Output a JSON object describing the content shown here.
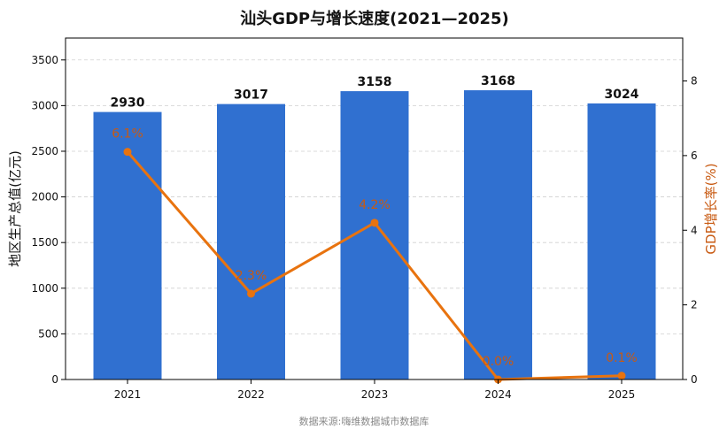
{
  "chart_data": {
    "type": "bar+line",
    "title": "汕头GDP与增长速度(2021—2025)",
    "categories": [
      "2021",
      "2022",
      "2023",
      "2024",
      "2025"
    ],
    "series": [
      {
        "values": [
          2930,
          3017,
          3158,
          3168,
          3024
        ],
        "value_labels": [
          "2930",
          "3017",
          "3158",
          "3168",
          "3024"
        ],
        "axis": "left",
        "color": "#3070d0",
        "type": "bar"
      },
      {
        "values": [
          6.1,
          2.3,
          4.2,
          0.0,
          0.1
        ],
        "value_labels": [
          "6.1%",
          "2.3%",
          "4.2%",
          "0.0%",
          "0.1%"
        ],
        "axis": "right",
        "color": "#e8730f",
        "type": "line"
      }
    ],
    "ylabel_left": "地区生产总值(亿元)",
    "ylabel_right": "GDP增长率(%)",
    "ylim_left": [
      0,
      3740
    ],
    "yticks_left": [
      "0",
      "500",
      "1000",
      "1500",
      "2000",
      "2500",
      "3000",
      "3500"
    ],
    "ylim_right": [
      0,
      9.15
    ],
    "yticks_right": [
      "0",
      "2",
      "4",
      "6",
      "8"
    ],
    "grid": true,
    "source_note": "数据来源:嗨维数据城市数据库"
  }
}
